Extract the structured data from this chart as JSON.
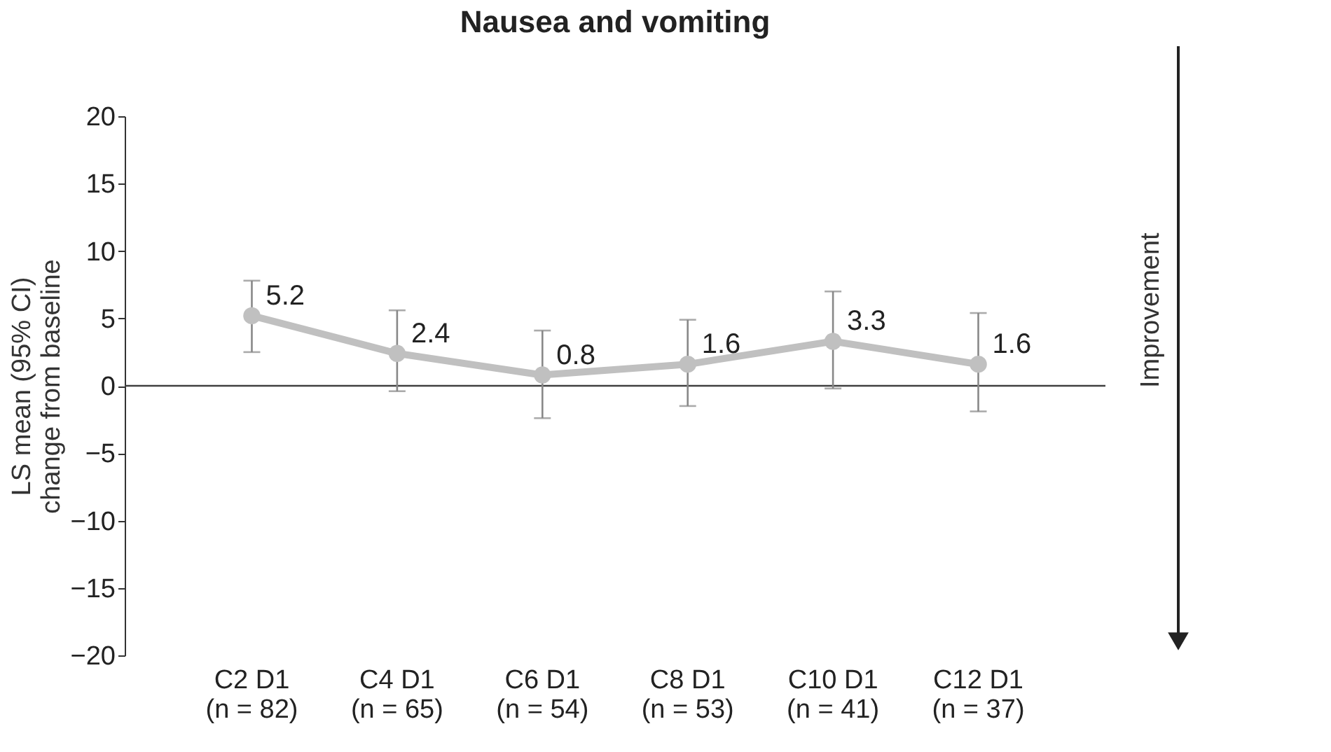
{
  "chart_data": {
    "type": "line",
    "title": "Nausea and vomiting",
    "ylabel": "LS mean (95% CI)\nchange from baseline",
    "categories": [
      "C2 D1\n(n = 82)",
      "C4 D1\n(n = 65)",
      "C6 D1\n(n = 54)",
      "C8 D1\n(n = 53)",
      "C10 D1\n(n = 41)",
      "C12 D1\n(n = 37)"
    ],
    "series": [
      {
        "color": "#c0c0c0",
        "values": [
          5.2,
          2.4,
          0.8,
          1.6,
          3.3,
          1.6
        ],
        "errors": [
          [
            2.5,
            7.8
          ],
          [
            -0.4,
            5.6
          ],
          [
            -2.4,
            4.1
          ],
          [
            -1.5,
            4.9
          ],
          [
            -0.2,
            7.0
          ],
          [
            -1.9,
            5.4
          ]
        ]
      }
    ],
    "ylim": [
      -20,
      20
    ],
    "yticks": [
      -20,
      -15,
      -10,
      -5,
      0,
      5,
      10,
      15,
      20
    ],
    "ref_lines": [
      {
        "axis": "y",
        "value": 0,
        "color": "#404040"
      }
    ],
    "annotations": [
      "Improvement"
    ],
    "data_labels": true,
    "marker": "circle",
    "line_style": "solid",
    "grid": false
  }
}
